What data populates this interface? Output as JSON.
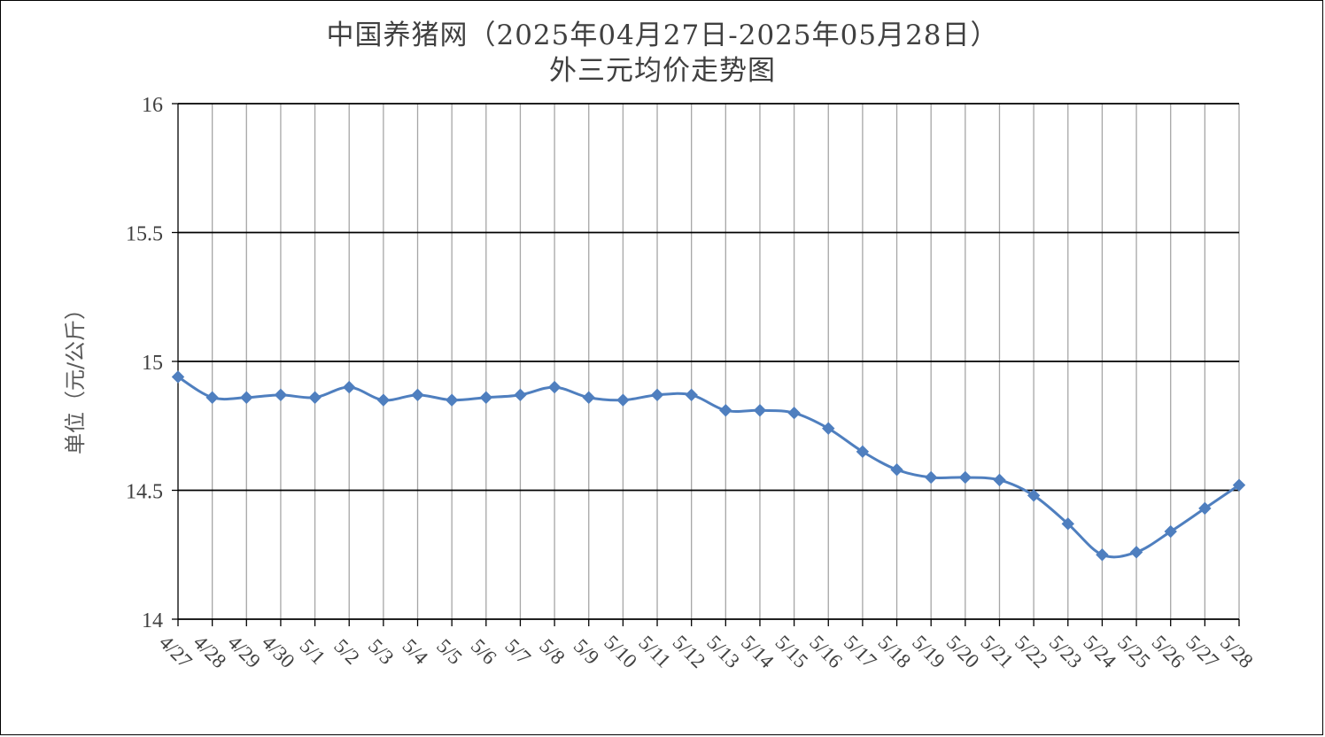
{
  "chart_data": {
    "type": "line",
    "title": "中国养猪网（2025年04月27日-2025年05月28日）",
    "subtitle": "外三元均价走势图",
    "xlabel": "",
    "ylabel": "单位（元/公斤）",
    "ylim": [
      14,
      16
    ],
    "yticks": [
      "14",
      "14.5",
      "15",
      "15.5",
      "16"
    ],
    "grid": true,
    "categories": [
      "4/27",
      "4/28",
      "4/29",
      "4/30",
      "5/1",
      "5/2",
      "5/3",
      "5/4",
      "5/5",
      "5/6",
      "5/7",
      "5/8",
      "5/9",
      "5/10",
      "5/11",
      "5/12",
      "5/13",
      "5/14",
      "5/15",
      "5/16",
      "5/17",
      "5/18",
      "5/19",
      "5/20",
      "5/21",
      "5/22",
      "5/23",
      "5/24",
      "5/25",
      "5/26",
      "5/27",
      "5/28"
    ],
    "series": [
      {
        "color": "#4f7fbf",
        "values": [
          14.94,
          14.86,
          14.86,
          14.87,
          14.86,
          14.9,
          14.85,
          14.87,
          14.85,
          14.86,
          14.87,
          14.9,
          14.86,
          14.85,
          14.87,
          14.87,
          14.81,
          14.81,
          14.8,
          14.74,
          14.65,
          14.58,
          14.55,
          14.55,
          14.54,
          14.48,
          14.37,
          14.25,
          14.26,
          14.34,
          14.43,
          14.52
        ]
      }
    ]
  }
}
